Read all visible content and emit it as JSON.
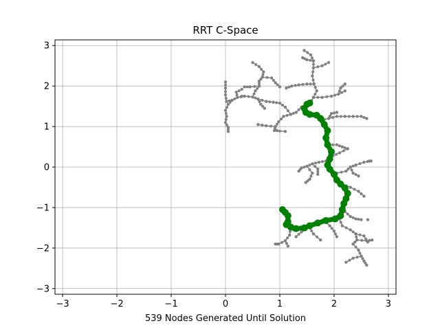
{
  "chart_data": {
    "type": "scatter",
    "title": "RRT C-Space",
    "xlabel": "539 Nodes Generated Until Solution",
    "ylabel": "",
    "xlim": [
      -3.14,
      3.14
    ],
    "ylim": [
      -3.14,
      3.14
    ],
    "xticks": [
      -3,
      -2,
      -1,
      0,
      1,
      2,
      3
    ],
    "yticks": [
      -3,
      -2,
      -1,
      0,
      1,
      2,
      3
    ],
    "grid": true,
    "colors": {
      "tree": "#808080",
      "path": "#008000"
    },
    "series": [
      {
        "role": "tree",
        "edges": [
          [
            [
              1.55,
              1.57
            ],
            [
              1.62,
              1.72
            ],
            [
              1.68,
              1.88
            ],
            [
              1.63,
              2.05
            ],
            [
              1.6,
              2.25
            ],
            [
              1.62,
              2.45
            ],
            [
              1.62,
              2.62
            ],
            [
              1.57,
              2.77
            ],
            [
              1.45,
              2.88
            ]
          ],
          [
            [
              1.62,
              2.45
            ],
            [
              1.78,
              2.5
            ],
            [
              1.9,
              2.58
            ]
          ],
          [
            [
              1.62,
              2.62
            ],
            [
              1.5,
              2.65
            ],
            [
              1.42,
              2.7
            ]
          ],
          [
            [
              1.63,
              2.05
            ],
            [
              1.5,
              2.05
            ],
            [
              1.35,
              2.03
            ],
            [
              1.22,
              2.0
            ],
            [
              1.12,
              1.95
            ]
          ],
          [
            [
              1.62,
              1.72
            ],
            [
              1.78,
              1.72
            ],
            [
              1.95,
              1.75
            ],
            [
              2.08,
              1.8
            ],
            [
              2.2,
              1.88
            ]
          ],
          [
            [
              2.08,
              1.8
            ],
            [
              2.12,
              1.95
            ],
            [
              2.2,
              2.05
            ]
          ],
          [
            [
              1.55,
              1.57
            ],
            [
              1.4,
              1.48
            ],
            [
              1.3,
              1.35
            ],
            [
              1.2,
              1.3
            ],
            [
              1.07,
              1.25
            ],
            [
              0.98,
              1.12
            ],
            [
              0.92,
              1.0
            ],
            [
              0.9,
              0.9
            ],
            [
              1.1,
              0.88
            ]
          ],
          [
            [
              0.92,
              1.0
            ],
            [
              0.75,
              1.02
            ],
            [
              0.6,
              1.05
            ]
          ],
          [
            [
              1.2,
              1.3
            ],
            [
              1.1,
              1.48
            ],
            [
              1.0,
              1.58
            ],
            [
              0.88,
              1.6
            ],
            [
              0.75,
              1.62
            ],
            [
              0.6,
              1.68
            ],
            [
              0.5,
              1.73
            ],
            [
              0.35,
              1.75
            ],
            [
              0.22,
              1.72
            ],
            [
              0.12,
              1.65
            ],
            [
              0.02,
              1.62
            ]
          ],
          [
            [
              0.22,
              1.72
            ],
            [
              0.2,
              1.85
            ],
            [
              0.3,
              1.92
            ]
          ],
          [
            [
              0.5,
              1.73
            ],
            [
              0.55,
              1.88
            ],
            [
              0.62,
              2.0
            ],
            [
              0.62,
              2.12
            ],
            [
              0.68,
              2.22
            ],
            [
              0.7,
              2.35
            ],
            [
              0.62,
              2.48
            ],
            [
              0.5,
              2.58
            ]
          ],
          [
            [
              0.68,
              2.22
            ],
            [
              0.85,
              2.2
            ],
            [
              0.92,
              2.08
            ],
            [
              1.0,
              1.98
            ]
          ],
          [
            [
              0.62,
              2.0
            ],
            [
              0.45,
              1.98
            ],
            [
              0.35,
              1.98
            ]
          ],
          [
            [
              0.12,
              1.65
            ],
            [
              0.05,
              1.55
            ],
            [
              0.0,
              1.4
            ],
            [
              0.02,
              1.25
            ],
            [
              0.0,
              1.1
            ],
            [
              0.05,
              0.98
            ],
            [
              0.05,
              0.88
            ]
          ],
          [
            [
              0.02,
              1.62
            ],
            [
              0.0,
              1.78
            ],
            [
              0.0,
              1.95
            ],
            [
              0.0,
              2.1
            ]
          ],
          [
            [
              0.6,
              1.68
            ],
            [
              0.65,
              1.55
            ],
            [
              0.72,
              1.45
            ]
          ],
          [
            [
              1.75,
              1.15
            ],
            [
              1.9,
              1.2
            ],
            [
              2.05,
              1.25
            ],
            [
              2.2,
              1.25
            ],
            [
              2.35,
              1.25
            ],
            [
              2.5,
              1.25
            ],
            [
              2.6,
              1.2
            ]
          ],
          [
            [
              1.9,
              1.2
            ],
            [
              1.95,
              1.32
            ],
            [
              2.05,
              1.35
            ]
          ],
          [
            [
              1.9,
              0.55
            ],
            [
              2.05,
              0.55
            ],
            [
              2.15,
              0.5
            ],
            [
              2.25,
              0.45
            ]
          ],
          [
            [
              2.25,
              0.45
            ],
            [
              2.1,
              0.35
            ],
            [
              1.98,
              0.28
            ],
            [
              1.9,
              0.22
            ]
          ],
          [
            [
              1.85,
              0.15
            ],
            [
              1.72,
              0.12
            ],
            [
              1.6,
              0.08
            ],
            [
              1.5,
              0.02
            ],
            [
              1.4,
              -0.02
            ],
            [
              1.35,
              -0.1
            ]
          ],
          [
            [
              1.6,
              0.08
            ],
            [
              1.7,
              -0.05
            ],
            [
              1.7,
              -0.18
            ]
          ],
          [
            [
              1.5,
              0.02
            ],
            [
              1.6,
              -0.15
            ],
            [
              1.55,
              -0.3
            ],
            [
              1.48,
              -0.38
            ]
          ],
          [
            [
              2.05,
              -0.15
            ],
            [
              2.22,
              -0.1
            ],
            [
              2.3,
              0.0
            ],
            [
              2.4,
              0.05
            ],
            [
              2.55,
              0.12
            ],
            [
              2.68,
              0.15
            ]
          ],
          [
            [
              2.3,
              0.0
            ],
            [
              2.35,
              -0.15
            ],
            [
              2.45,
              -0.22
            ]
          ],
          [
            [
              2.15,
              -0.42
            ],
            [
              2.3,
              -0.5
            ],
            [
              2.45,
              -0.6
            ],
            [
              2.55,
              -0.72
            ]
          ],
          [
            [
              2.2,
              -1.1
            ],
            [
              2.3,
              -1.22
            ],
            [
              2.4,
              -1.28
            ],
            [
              2.5,
              -1.3
            ]
          ],
          [
            [
              2.1,
              -1.28
            ],
            [
              2.15,
              -1.45
            ],
            [
              2.3,
              -1.55
            ],
            [
              2.4,
              -1.65
            ],
            [
              2.42,
              -1.8
            ],
            [
              2.35,
              -1.9
            ]
          ],
          [
            [
              2.4,
              -1.65
            ],
            [
              2.55,
              -1.7
            ],
            [
              2.62,
              -1.85
            ]
          ],
          [
            [
              2.35,
              -1.9
            ],
            [
              2.45,
              -2.05
            ],
            [
              2.5,
              -2.2
            ],
            [
              2.55,
              -2.32
            ],
            [
              2.6,
              -2.42
            ]
          ],
          [
            [
              2.5,
              -2.2
            ],
            [
              2.35,
              -2.25
            ],
            [
              2.22,
              -2.35
            ]
          ],
          [
            [
              2.42,
              -1.8
            ],
            [
              2.6,
              -1.82
            ],
            [
              2.7,
              -1.8
            ]
          ],
          [
            [
              1.7,
              -1.38
            ],
            [
              1.55,
              -1.5
            ],
            [
              1.4,
              -1.6
            ],
            [
              1.3,
              -1.72
            ]
          ],
          [
            [
              1.55,
              -1.5
            ],
            [
              1.62,
              -1.65
            ],
            [
              1.75,
              -1.8
            ]
          ],
          [
            [
              1.2,
              -1.5
            ],
            [
              1.18,
              -1.68
            ],
            [
              1.1,
              -1.82
            ],
            [
              0.98,
              -1.9
            ],
            [
              0.92,
              -1.9
            ]
          ],
          [
            [
              1.1,
              -1.82
            ],
            [
              1.15,
              -1.95
            ]
          ],
          [
            [
              1.8,
              -1.3
            ],
            [
              1.92,
              -1.45
            ],
            [
              2.0,
              -1.58
            ],
            [
              2.05,
              -1.72
            ]
          ]
        ],
        "nodes": [
          [
            1.05,
            -1.05
          ],
          [
            1.25,
            -1.55
          ],
          [
            1.5,
            1.58
          ],
          [
            0.95,
            0.9
          ],
          [
            0.3,
            1.75
          ],
          [
            2.62,
            -1.3
          ],
          [
            2.65,
            0.15
          ]
        ]
      },
      {
        "role": "path",
        "points": [
          [
            1.05,
            -1.05
          ],
          [
            1.1,
            -1.12
          ],
          [
            1.15,
            -1.2
          ],
          [
            1.15,
            -1.35
          ],
          [
            1.12,
            -1.42
          ],
          [
            1.2,
            -1.48
          ],
          [
            1.3,
            -1.52
          ],
          [
            1.45,
            -1.5
          ],
          [
            1.55,
            -1.45
          ],
          [
            1.7,
            -1.38
          ],
          [
            1.85,
            -1.32
          ],
          [
            2.02,
            -1.28
          ],
          [
            2.12,
            -1.2
          ],
          [
            2.15,
            -1.05
          ],
          [
            2.18,
            -0.9
          ],
          [
            2.22,
            -0.78
          ],
          [
            2.25,
            -0.65
          ],
          [
            2.2,
            -0.52
          ],
          [
            2.12,
            -0.42
          ],
          [
            2.05,
            -0.32
          ],
          [
            2.0,
            -0.18
          ],
          [
            1.92,
            -0.05
          ],
          [
            1.88,
            0.05
          ],
          [
            1.92,
            0.2
          ],
          [
            1.95,
            0.38
          ],
          [
            1.88,
            0.55
          ],
          [
            1.85,
            0.72
          ],
          [
            1.88,
            0.9
          ],
          [
            1.82,
            1.05
          ],
          [
            1.75,
            1.2
          ],
          [
            1.68,
            1.28
          ],
          [
            1.55,
            1.3
          ],
          [
            1.48,
            1.35
          ],
          [
            1.45,
            1.45
          ],
          [
            1.5,
            1.55
          ],
          [
            1.55,
            1.58
          ]
        ]
      }
    ]
  }
}
